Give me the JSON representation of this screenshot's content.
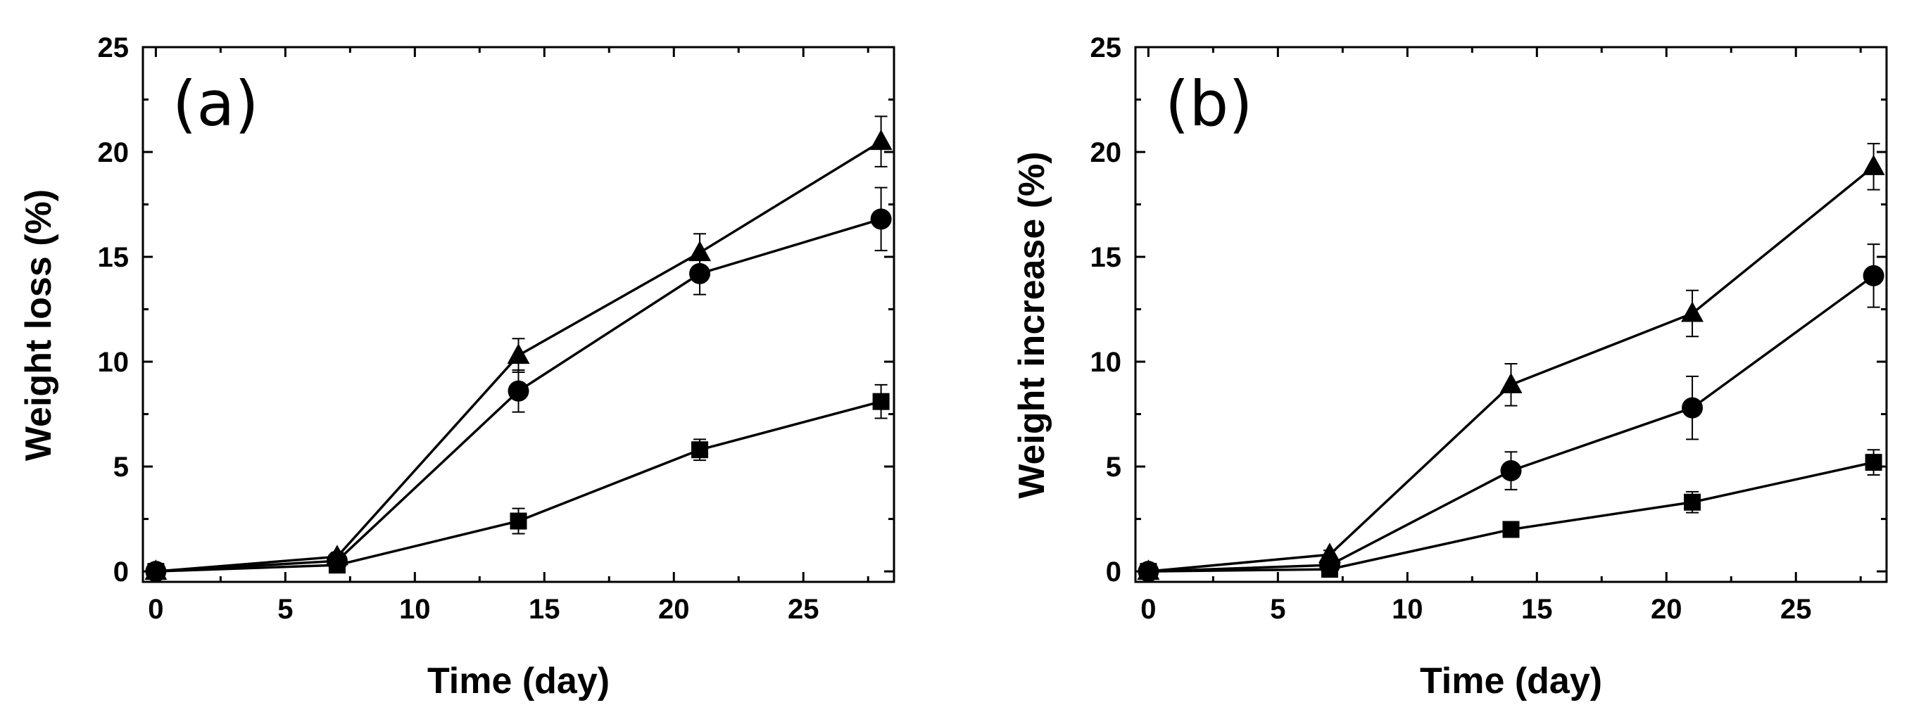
{
  "figure": {
    "panels": [
      "a",
      "b"
    ]
  },
  "chart_data": [
    {
      "type": "line",
      "panel_label": "(a)",
      "xlabel": "Time (day)",
      "ylabel": "Weight loss (%)",
      "xlim": [
        -0.5,
        28.5
      ],
      "ylim": [
        -0.5,
        25
      ],
      "xticks": [
        0,
        5,
        10,
        15,
        20,
        25
      ],
      "yticks": [
        0,
        5,
        10,
        15,
        20,
        25
      ],
      "x": [
        0,
        7,
        14,
        21,
        28
      ],
      "series": [
        {
          "name": "square",
          "marker": "square",
          "values": [
            0.0,
            0.3,
            2.4,
            5.8,
            8.1
          ],
          "errors": [
            0.15,
            0.2,
            0.6,
            0.5,
            0.8
          ]
        },
        {
          "name": "circle",
          "marker": "circle",
          "values": [
            0.0,
            0.5,
            8.6,
            14.2,
            16.8
          ],
          "errors": [
            0.15,
            0.2,
            1.0,
            1.0,
            1.5
          ]
        },
        {
          "name": "triangle",
          "marker": "triangle",
          "values": [
            0.0,
            0.7,
            10.3,
            15.2,
            20.5
          ],
          "errors": [
            0.15,
            0.2,
            0.8,
            0.9,
            1.2
          ]
        }
      ]
    },
    {
      "type": "line",
      "panel_label": "(b)",
      "xlabel": "Time (day)",
      "ylabel": "Weight increase (%)",
      "xlim": [
        -0.5,
        28.5
      ],
      "ylim": [
        -0.5,
        25
      ],
      "xticks": [
        0,
        5,
        10,
        15,
        20,
        25
      ],
      "yticks": [
        0,
        5,
        10,
        15,
        20,
        25
      ],
      "x": [
        0,
        7,
        14,
        21,
        28
      ],
      "series": [
        {
          "name": "square",
          "marker": "square",
          "values": [
            0.0,
            0.1,
            2.0,
            3.3,
            5.2
          ],
          "errors": [
            0.15,
            0.15,
            0.3,
            0.5,
            0.6
          ]
        },
        {
          "name": "circle",
          "marker": "circle",
          "values": [
            0.0,
            0.3,
            4.8,
            7.8,
            14.1
          ],
          "errors": [
            0.15,
            0.15,
            0.9,
            1.5,
            1.5
          ]
        },
        {
          "name": "triangle",
          "marker": "triangle",
          "values": [
            0.0,
            0.8,
            8.9,
            12.3,
            19.3
          ],
          "errors": [
            0.15,
            0.2,
            1.0,
            1.1,
            1.1
          ]
        }
      ]
    }
  ]
}
